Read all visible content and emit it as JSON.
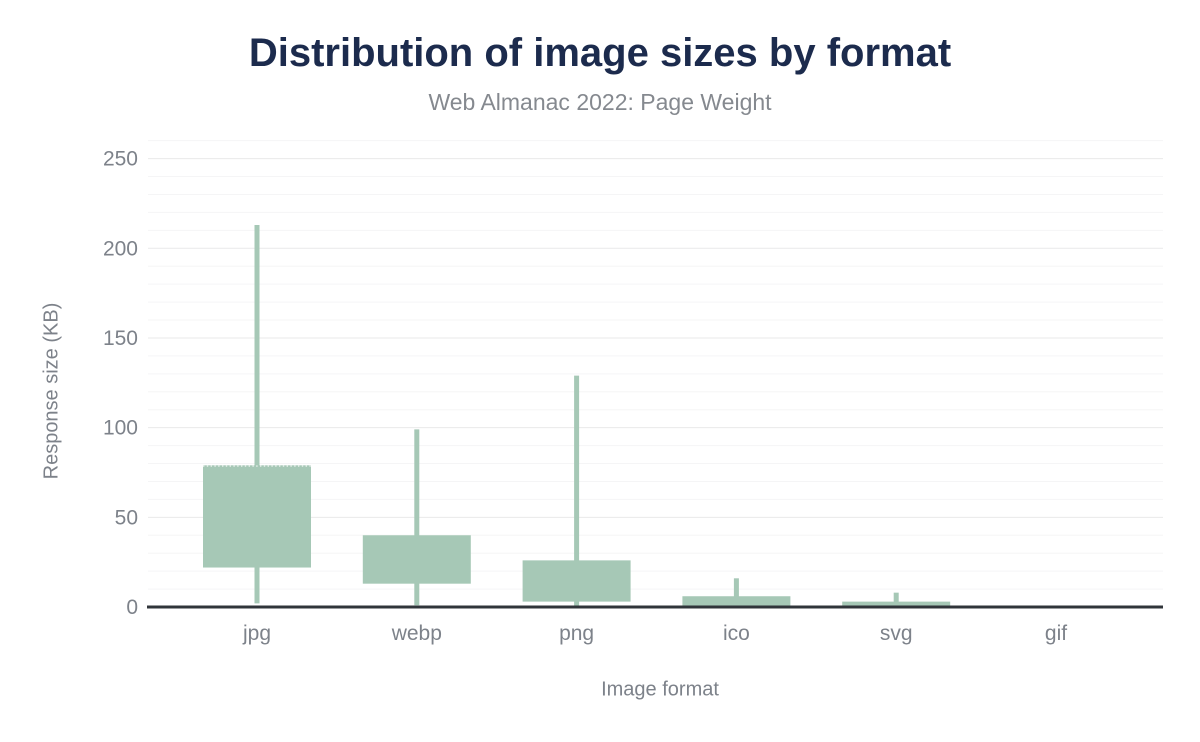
{
  "header": {
    "title": "Distribution of image sizes by format",
    "subtitle": "Web Almanac 2022: Page Weight"
  },
  "chart_data": {
    "type": "boxplot",
    "title": "Distribution of image sizes by format",
    "subtitle": "Web Almanac 2022: Page Weight",
    "xlabel": "Image format",
    "ylabel": "Response size (KB)",
    "categories": [
      "jpg",
      "webp",
      "png",
      "ico",
      "svg",
      "gif"
    ],
    "series": [
      {
        "name": "Response size (KB)",
        "points": [
          {
            "category": "jpg",
            "whisker_low": 2,
            "box_low": 22,
            "box_high": 79,
            "whisker_high": 213
          },
          {
            "category": "webp",
            "whisker_low": 1,
            "box_low": 13,
            "box_high": 40,
            "whisker_high": 99
          },
          {
            "category": "png",
            "whisker_low": 0,
            "box_low": 3,
            "box_high": 26,
            "whisker_high": 129
          },
          {
            "category": "ico",
            "whisker_low": 0,
            "box_low": 0,
            "box_high": 6,
            "whisker_high": 16
          },
          {
            "category": "svg",
            "whisker_low": 0,
            "box_low": 0,
            "box_high": 3,
            "whisker_high": 8
          },
          {
            "category": "gif",
            "whisker_low": 0,
            "box_low": 0,
            "box_high": 0,
            "whisker_high": 0
          }
        ]
      }
    ],
    "ylim": [
      0,
      260
    ],
    "yticks": [
      0,
      50,
      100,
      150,
      200,
      250
    ],
    "minor_tick_step": 10,
    "grid": "on",
    "legend": "none",
    "median_line_shown": false,
    "colors": {
      "box": "#a6c8b6",
      "whisker": "#a6c8b6",
      "axis_line": "#30353a",
      "grid_major": "#e9e9ea",
      "grid_minor": "#f5f5f6",
      "title": "#1c2b4d",
      "subtitle": "#85898f",
      "tick_label": "#7d828a"
    }
  }
}
